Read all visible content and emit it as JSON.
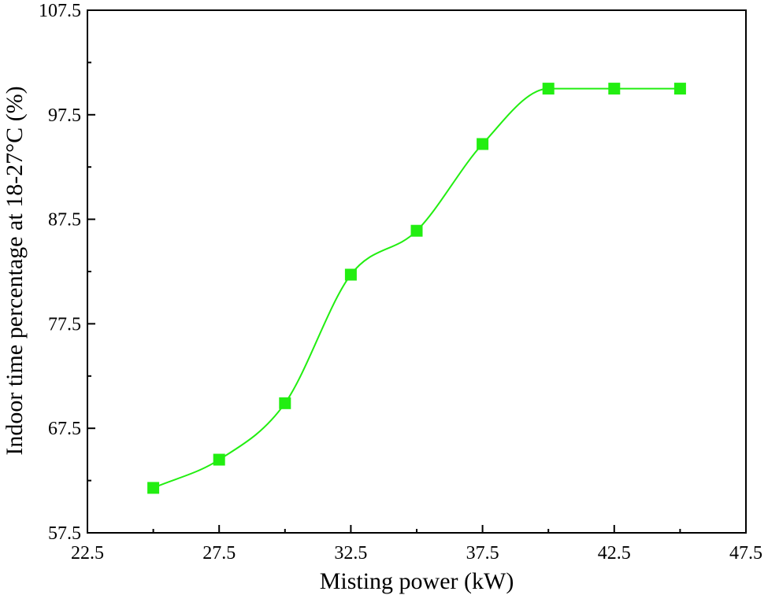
{
  "chart_data": {
    "type": "scatter",
    "title": "",
    "xlabel": "Misting power (kW)",
    "ylabel": "Indoor time percentage at 18-27°C (%)",
    "xlim": [
      22.5,
      47.5
    ],
    "ylim": [
      57.5,
      107.5
    ],
    "x_ticks": [
      22.5,
      27.5,
      32.5,
      37.5,
      42.5,
      47.5
    ],
    "y_ticks": [
      57.5,
      67.5,
      77.5,
      87.5,
      97.5,
      107.5
    ],
    "x_tick_labels": [
      "22.5",
      "27.5",
      "32.5",
      "37.5",
      "42.5",
      "47.5"
    ],
    "y_tick_labels": [
      "57.5",
      "67.5",
      "77.5",
      "87.5",
      "97.5",
      "107.5"
    ],
    "grid": false,
    "legend": "none",
    "series": [
      {
        "marker": "square",
        "color": "#22ee11",
        "fit_line": "smooth",
        "x": [
          25,
          27.5,
          30,
          32.5,
          35,
          37.5,
          40,
          42.5,
          45
        ],
        "y": [
          61.8,
          64.5,
          69.9,
          82.2,
          86.4,
          94.7,
          100,
          100,
          100
        ]
      }
    ]
  }
}
